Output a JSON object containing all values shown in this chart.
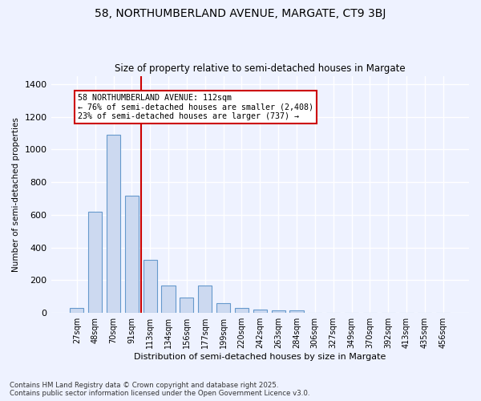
{
  "title_line1": "58, NORTHUMBERLAND AVENUE, MARGATE, CT9 3BJ",
  "title_line2": "Size of property relative to semi-detached houses in Margate",
  "xlabel": "Distribution of semi-detached houses by size in Margate",
  "ylabel": "Number of semi-detached properties",
  "categories": [
    "27sqm",
    "48sqm",
    "70sqm",
    "91sqm",
    "113sqm",
    "134sqm",
    "156sqm",
    "177sqm",
    "199sqm",
    "220sqm",
    "242sqm",
    "263sqm",
    "284sqm",
    "306sqm",
    "327sqm",
    "349sqm",
    "370sqm",
    "392sqm",
    "413sqm",
    "435sqm",
    "456sqm"
  ],
  "values": [
    32,
    618,
    1090,
    718,
    325,
    170,
    95,
    170,
    58,
    32,
    20,
    15,
    15,
    0,
    0,
    0,
    0,
    0,
    0,
    0,
    0
  ],
  "bar_color": "#ccd9f0",
  "bar_edge_color": "#6699cc",
  "annotation_box_color": "#ffffff",
  "annotation_border_color": "#cc0000",
  "vline_color": "#cc0000",
  "vline_index": 4,
  "annotation_text_line1": "58 NORTHUMBERLAND AVENUE: 112sqm",
  "annotation_text_line2": "← 76% of semi-detached houses are smaller (2,408)",
  "annotation_text_line3": "23% of semi-detached houses are larger (737) →",
  "ylim": [
    0,
    1450
  ],
  "background_color": "#eef2ff",
  "grid_color": "#ffffff",
  "footer_line1": "Contains HM Land Registry data © Crown copyright and database right 2025.",
  "footer_line2": "Contains public sector information licensed under the Open Government Licence v3.0."
}
